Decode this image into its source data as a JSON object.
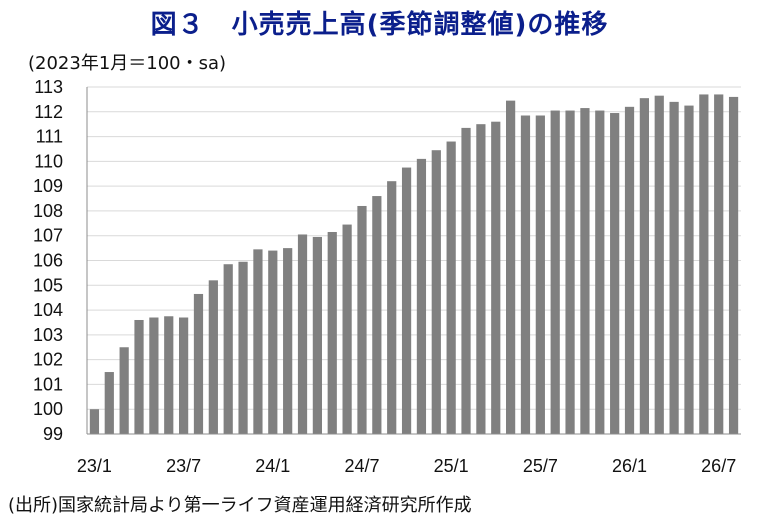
{
  "chart_data": {
    "type": "bar",
    "title": "図３　小売売上高(季節調整値)の推移",
    "subtitle": "(2023年1月＝100・sa)",
    "source": "(出所)国家統計局より第一ライフ資産運用経済研究所作成",
    "ylim": [
      99,
      113
    ],
    "yticks": [
      99,
      100,
      101,
      102,
      103,
      104,
      105,
      106,
      107,
      108,
      109,
      110,
      111,
      112,
      113
    ],
    "xtick_labels": [
      {
        "index": 0,
        "label": "23/1"
      },
      {
        "index": 6,
        "label": "23/7"
      },
      {
        "index": 12,
        "label": "24/1"
      },
      {
        "index": 18,
        "label": "24/7"
      },
      {
        "index": 24,
        "label": "25/1"
      },
      {
        "index": 30,
        "label": "25/7"
      },
      {
        "index": 36,
        "label": "26/1"
      },
      {
        "index": 42,
        "label": "26/7"
      }
    ],
    "bar_color": "#808080",
    "values": [
      100.0,
      101.5,
      102.5,
      103.6,
      103.7,
      103.75,
      103.7,
      104.65,
      105.2,
      105.85,
      105.95,
      106.45,
      106.4,
      106.5,
      107.05,
      106.95,
      107.15,
      107.45,
      108.2,
      108.6,
      109.2,
      109.75,
      110.1,
      110.45,
      110.8,
      111.35,
      111.5,
      111.6,
      112.45,
      111.85,
      111.85,
      112.05,
      112.05,
      112.15,
      112.05,
      111.95,
      112.2,
      112.55,
      112.65,
      112.4,
      112.25,
      112.7,
      112.7,
      112.6
    ]
  }
}
